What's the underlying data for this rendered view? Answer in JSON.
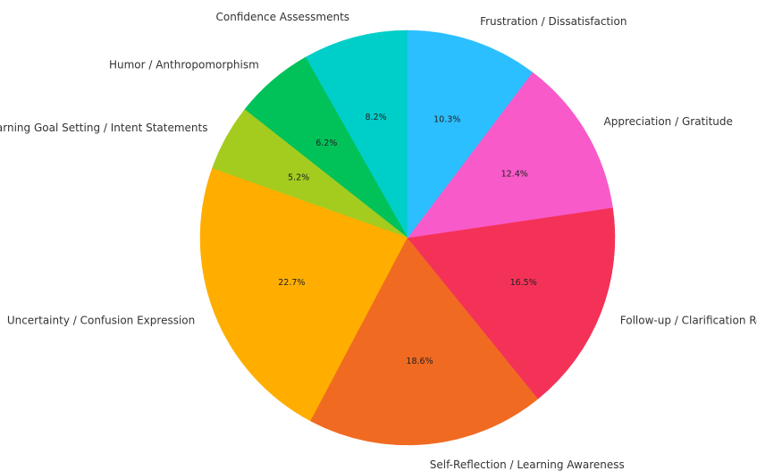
{
  "chart_data": {
    "type": "pie",
    "title": "",
    "start_angle_deg": 90,
    "direction": "counterclockwise",
    "label_format": "percent-1dp",
    "slices": [
      {
        "label": "Confidence Assessments",
        "value": 8.2,
        "color": "#00CEC9"
      },
      {
        "label": "Humor / Anthropomorphism",
        "value": 6.2,
        "color": "#00C259"
      },
      {
        "label": "Learning Goal Setting / Intent Statements",
        "value": 5.2,
        "color": "#A4CC1E"
      },
      {
        "label": "Uncertainty / Confusion Expression",
        "value": 22.7,
        "color": "#FFAE00"
      },
      {
        "label": "Self-Reflection / Learning Awareness",
        "value": 18.6,
        "color": "#F16A22"
      },
      {
        "label": "Follow-up / Clarification Requests",
        "value": 16.5,
        "color": "#F43258"
      },
      {
        "label": "Appreciation / Gratitude",
        "value": 12.4,
        "color": "#F85ACA"
      },
      {
        "label": "Frustration / Dissatisfaction",
        "value": 10.3,
        "color": "#2BBFFF"
      }
    ]
  }
}
